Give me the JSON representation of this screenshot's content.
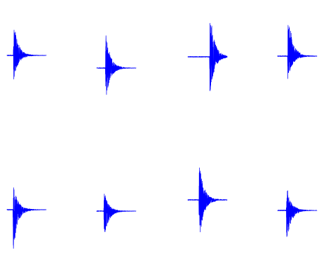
{
  "chart_data": {
    "type": "line",
    "layout": {
      "rows": 2,
      "cols": 4
    },
    "axes_visible": false,
    "grid": false,
    "legend": "none",
    "color": "#0000ff",
    "panels": [
      {
        "onset": 0.16,
        "peak_up": 0.9,
        "peak_down": 0.75,
        "baseline_offset": 0.0,
        "tail_level": 0.02
      },
      {
        "onset": 0.22,
        "peak_up": 0.85,
        "peak_down": 0.95,
        "baseline_offset": 0.0,
        "tail_level": 0.02
      },
      {
        "onset": 0.55,
        "peak_up": 1.0,
        "peak_down": 0.95,
        "baseline_offset": 0.0,
        "tail_level": 0.02
      },
      {
        "onset": 0.25,
        "peak_up": 1.0,
        "peak_down": 0.8,
        "baseline_offset": 0.0,
        "tail_level": 0.03
      },
      {
        "onset": 0.15,
        "peak_up": 0.7,
        "peak_down": 1.0,
        "baseline_offset": 0.0,
        "tail_level": 0.02
      },
      {
        "onset": 0.18,
        "peak_up": 0.7,
        "peak_down": 0.85,
        "baseline_offset": 0.0,
        "tail_level": 0.02
      },
      {
        "onset": 0.28,
        "peak_up": 0.95,
        "peak_down": 1.0,
        "baseline_offset": 0.0,
        "tail_level": 0.03
      },
      {
        "onset": 0.22,
        "peak_up": 0.65,
        "peak_down": 0.9,
        "baseline_offset": 0.0,
        "tail_level": 0.02
      }
    ]
  }
}
